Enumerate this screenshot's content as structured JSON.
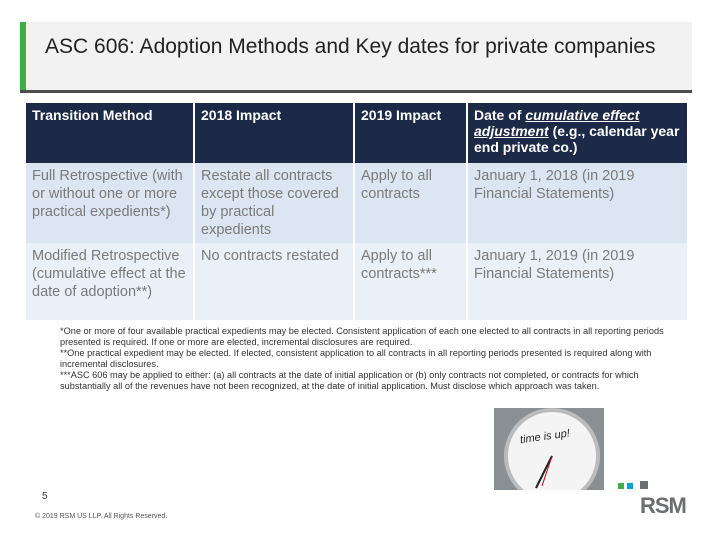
{
  "slide": {
    "title": "ASC 606: Adoption Methods and Key dates for private companies",
    "table": {
      "header": [
        "Transition Method",
        "2018 Impact",
        "2019 Impact",
        {
          "parts": [
            "Date of ",
            "cumulative effect adjustment",
            " (e.g., calendar year end private co.)"
          ]
        }
      ],
      "rows": [
        [
          "Full Retrospective (with or without one or more practical expedients*)",
          "Restate all contracts except those covered by practical expedients",
          "Apply to all contracts",
          "January 1, 2018 (in 2019 Financial Statements)"
        ],
        [
          "Modified Retrospective (cumulative effect at the date of adoption**)",
          "No contracts restated",
          "Apply to all contracts***",
          "January 1, 2019 (in 2019 Financial Statements)"
        ]
      ]
    },
    "footnotes": [
      "*One or more of four available practical expedients may be elected. Consistent application of each one elected to all contracts in all reporting periods presented is required. If one or more are elected, incremental disclosures are required.",
      "**One practical expedient may be elected. If elected, consistent application to all contracts in all reporting periods presented is required along with incremental disclosures.",
      "***ASC 606 may be applied to either: (a) all contracts at the date of initial application or (b) only contracts not completed, or contracts for which substantially all of the revenues have not been recognized, at the date of initial application. Must disclose which approach was taken."
    ],
    "image_caption": "time is up!",
    "page_number": "5",
    "copyright": "© 2019 RSM US LLP. All Rights Reserved.",
    "logo": "RSM"
  }
}
